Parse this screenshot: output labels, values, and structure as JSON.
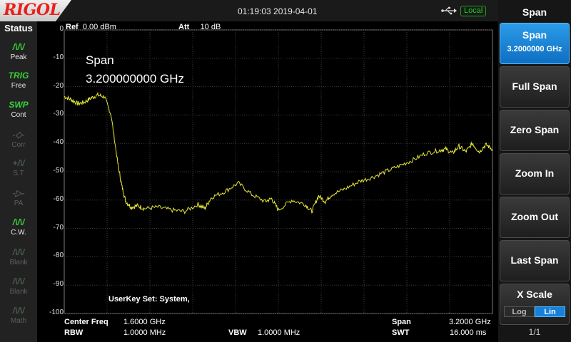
{
  "topbar": {
    "brand": "RIGOL",
    "timestamp": "01:19:03 2019-04-01",
    "usb_icon": "usb-icon",
    "local_badge": "Local"
  },
  "status": {
    "title": "Status",
    "items": [
      {
        "glyph": "/\\/\\/",
        "label": "Peak",
        "icon": "peak-icon",
        "state": "active"
      },
      {
        "glyph": "TRIG",
        "label": "Free",
        "icon": "trig-icon",
        "state": "active"
      },
      {
        "glyph": "SWP",
        "label": "Cont",
        "icon": "sweep-icon",
        "state": "active"
      },
      {
        "glyph": "-◇-",
        "label": "Corr",
        "icon": "corr-icon",
        "state": "dim"
      },
      {
        "glyph": "+/\\/",
        "label": "S.T",
        "icon": "st-icon",
        "state": "dim"
      },
      {
        "glyph": "-▷-",
        "label": "PA",
        "icon": "pa-icon",
        "state": "dim"
      },
      {
        "glyph": "/\\/\\/",
        "label": "C.W.",
        "icon": "cw-icon",
        "state": "active"
      },
      {
        "glyph": "/\\/\\/",
        "label": "Blank",
        "icon": "blank-icon",
        "state": "dim"
      },
      {
        "glyph": "/\\/\\/",
        "label": "Blank",
        "icon": "blank-icon",
        "state": "dim"
      },
      {
        "glyph": "/\\/\\/",
        "label": "Math",
        "icon": "math-icon",
        "state": "dim"
      }
    ]
  },
  "graticule": {
    "ref_label": "Ref",
    "ref_value": "0.00 dBm",
    "att_label": "Att",
    "att_value": "10 dB",
    "y_ticks": [
      "0",
      "-10",
      "-20",
      "-30",
      "-40",
      "-50",
      "-60",
      "-70",
      "-80",
      "-90",
      "-100"
    ],
    "active_function_title": "Span",
    "active_function_value": "3.200000000 GHz",
    "userkey_text": "UserKey Set:   System,",
    "trace_color": "#e6e639"
  },
  "chart_data": {
    "type": "line",
    "xlabel": "",
    "ylabel": "",
    "xlim": [
      0,
      3.2
    ],
    "ylim": [
      -100,
      0
    ],
    "y_ticks": [
      0,
      -10,
      -20,
      -30,
      -40,
      -50,
      -60,
      -70,
      -80,
      -90,
      -100
    ],
    "grid": true,
    "series": [
      {
        "x": [
          0.0,
          0.05,
          0.1,
          0.15,
          0.2,
          0.25,
          0.3,
          0.35,
          0.4,
          0.43,
          0.46,
          0.5,
          0.55,
          0.6,
          0.7,
          0.8,
          0.9,
          1.0,
          1.05,
          1.1,
          1.2,
          1.3,
          1.4,
          1.5,
          1.55,
          1.6,
          1.7,
          1.8,
          1.85,
          1.9,
          1.95,
          2.0,
          2.1,
          2.2,
          2.3,
          2.4,
          2.5,
          2.6,
          2.7,
          2.8,
          2.85,
          2.9,
          2.95,
          3.0,
          3.05,
          3.1,
          3.15,
          3.2
        ],
        "y": [
          -23.5,
          -24.5,
          -26.0,
          -25.5,
          -24.0,
          -23.0,
          -23.5,
          -30.0,
          -47.0,
          -55.0,
          -60.5,
          -62.5,
          -62.0,
          -63.0,
          -62.5,
          -63.5,
          -64.0,
          -61.5,
          -63.0,
          -59.0,
          -57.0,
          -54.0,
          -58.0,
          -60.5,
          -59.5,
          -63.5,
          -60.0,
          -61.5,
          -64.0,
          -58.5,
          -60.5,
          -58.0,
          -56.0,
          -53.5,
          -52.0,
          -50.0,
          -48.0,
          -46.0,
          -43.5,
          -42.5,
          -42.0,
          -43.5,
          -41.0,
          -43.0,
          -40.0,
          -43.0,
          -40.5,
          -42.0
        ]
      }
    ]
  },
  "info": {
    "center_freq_label": "Center Freq",
    "center_freq_value": "1.6000 GHz",
    "span_label": "Span",
    "span_value": "3.2000 GHz",
    "rbw_label": "RBW",
    "rbw_value": "1.0000 MHz",
    "vbw_label": "VBW",
    "vbw_value": "1.0000 MHz",
    "swt_label": "SWT",
    "swt_value": "16.000 ms"
  },
  "menu": {
    "title": "Span",
    "span_label": "Span",
    "span_value": "3.2000000 GHz",
    "full_span": "Full Span",
    "zero_span": "Zero Span",
    "zoom_in": "Zoom In",
    "zoom_out": "Zoom Out",
    "last_span": "Last Span",
    "x_scale": "X Scale",
    "x_scale_log": "Log",
    "x_scale_lin": "Lin",
    "x_scale_selected": "Lin",
    "page": "1/1",
    "accent": "#1681dd"
  }
}
